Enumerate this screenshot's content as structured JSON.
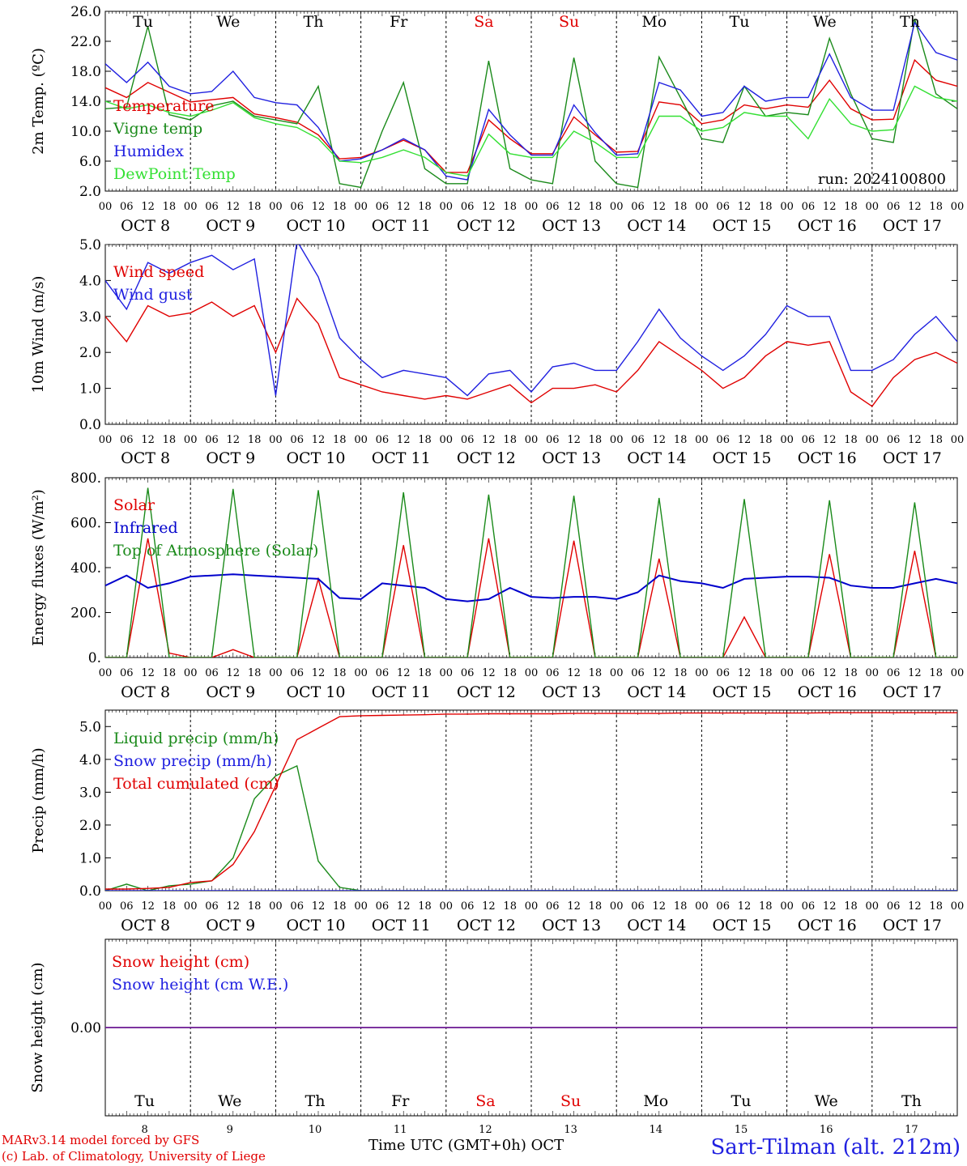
{
  "chart_data": {
    "type": "line",
    "run_label": "run: 2024100800",
    "days": [
      {
        "weekday": "Tu",
        "date_label": "OCT  8",
        "day_num": "8",
        "weekend": false
      },
      {
        "weekday": "We",
        "date_label": "OCT  9",
        "day_num": "9",
        "weekend": false
      },
      {
        "weekday": "Th",
        "date_label": "OCT 10",
        "day_num": "10",
        "weekend": false
      },
      {
        "weekday": "Fr",
        "date_label": "OCT 11",
        "day_num": "11",
        "weekend": false
      },
      {
        "weekday": "Sa",
        "date_label": "OCT 12",
        "day_num": "12",
        "weekend": true
      },
      {
        "weekday": "Su",
        "date_label": "OCT 13",
        "day_num": "13",
        "weekend": true
      },
      {
        "weekday": "Mo",
        "date_label": "OCT 14",
        "day_num": "14",
        "weekend": false
      },
      {
        "weekday": "Tu",
        "date_label": "OCT 15",
        "day_num": "15",
        "weekend": false
      },
      {
        "weekday": "We",
        "date_label": "OCT 16",
        "day_num": "16",
        "weekend": false
      },
      {
        "weekday": "Th",
        "date_label": "OCT 17",
        "day_num": "17",
        "weekend": false
      }
    ],
    "hour_ticks": [
      "00",
      "06",
      "12",
      "18"
    ],
    "x_hours": [
      0,
      6,
      12,
      18,
      24,
      30,
      36,
      42,
      48,
      54,
      60,
      66,
      72,
      78,
      84,
      90,
      96,
      102,
      108,
      114,
      120,
      126,
      132,
      138,
      144,
      150,
      156,
      162,
      168,
      174,
      180,
      186,
      192,
      198,
      204,
      210,
      216,
      222,
      228,
      234,
      240
    ],
    "panels": [
      {
        "ylabel": "2m Temp. (ºC)",
        "ylim": [
          2.0,
          26.0
        ],
        "yticks": [
          "2.0",
          "6.0",
          "10.0",
          "14.0",
          "18.0",
          "22.0",
          "26.0"
        ],
        "ytick_values": [
          2,
          6,
          10,
          14,
          18,
          22,
          26
        ],
        "series": [
          {
            "name": "Temperature",
            "color": "#e00000",
            "values": [
              15.8,
              14.5,
              16.5,
              15.2,
              13.9,
              14.2,
              14.5,
              12.3,
              11.8,
              11.2,
              9.5,
              6.3,
              6.5,
              7.5,
              8.8,
              7.5,
              4.5,
              4.5,
              11.5,
              9.0,
              7.0,
              7.0,
              11.9,
              9.5,
              7.2,
              7.3,
              13.9,
              13.5,
              11.0,
              11.5,
              13.5,
              13.0,
              13.5,
              13.2,
              16.8,
              13.0,
              11.5,
              11.6,
              19.5,
              16.8,
              16.0
            ]
          },
          {
            "name": "Vigne temp",
            "color": "#1a8a1a",
            "values": [
              13.0,
              13.2,
              24.0,
              12.2,
              11.5,
              13.4,
              14.0,
              12.0,
              11.5,
              11.0,
              16.0,
              3.0,
              2.5,
              10.0,
              16.5,
              5.0,
              3.0,
              3.0,
              19.4,
              5.0,
              3.5,
              3.0,
              19.8,
              6.0,
              3.0,
              2.5,
              19.9,
              14.5,
              9.0,
              8.5,
              16.0,
              12.0,
              12.5,
              12.2,
              22.4,
              15.0,
              9.0,
              8.5,
              25.0,
              15.0,
              13.0
            ]
          },
          {
            "name": "Humidex",
            "color": "#2020e0",
            "values": [
              19.0,
              16.5,
              19.2,
              16.0,
              15.0,
              15.3,
              18.0,
              14.5,
              13.8,
              13.5,
              10.5,
              6.0,
              6.3,
              7.5,
              9.0,
              7.5,
              4.0,
              3.5,
              12.9,
              9.5,
              6.8,
              6.8,
              13.5,
              9.8,
              6.8,
              7.0,
              16.5,
              15.5,
              12.0,
              12.5,
              16.0,
              14.0,
              14.5,
              14.5,
              20.3,
              14.5,
              12.8,
              12.8,
              24.5,
              20.5,
              19.5
            ]
          },
          {
            "name": "DewPoint Temp",
            "color": "#33e033",
            "values": [
              14.0,
              13.0,
              13.5,
              12.5,
              12.0,
              12.8,
              13.8,
              11.8,
              11.0,
              10.5,
              9.0,
              6.0,
              5.8,
              6.5,
              7.5,
              6.5,
              4.5,
              4.0,
              9.6,
              7.0,
              6.5,
              6.5,
              10.0,
              8.5,
              6.5,
              6.5,
              12.0,
              12.0,
              10.0,
              10.5,
              12.5,
              12.0,
              12.0,
              9.0,
              14.3,
              11.0,
              10.0,
              10.2,
              16.0,
              14.5,
              14.0
            ]
          }
        ]
      },
      {
        "ylabel": "10m Wind (m/s)",
        "ylim": [
          0.0,
          5.0
        ],
        "yticks": [
          "0.0",
          "1.0",
          "2.0",
          "3.0",
          "4.0",
          "5.0"
        ],
        "ytick_values": [
          0,
          1,
          2,
          3,
          4,
          5
        ],
        "series": [
          {
            "name": "Wind speed",
            "color": "#e00000",
            "values": [
              3.0,
              2.3,
              3.3,
              3.0,
              3.1,
              3.4,
              3.0,
              3.3,
              2.0,
              3.5,
              2.8,
              1.3,
              1.1,
              0.9,
              0.8,
              0.7,
              0.8,
              0.7,
              0.9,
              1.1,
              0.6,
              1.0,
              1.0,
              1.1,
              0.9,
              1.5,
              2.3,
              1.9,
              1.5,
              1.0,
              1.3,
              1.9,
              2.3,
              2.2,
              2.3,
              0.9,
              0.5,
              1.3,
              1.8,
              2.0,
              1.7
            ]
          },
          {
            "name": "Wind gust",
            "color": "#2020e0",
            "values": [
              4.0,
              3.2,
              4.5,
              4.2,
              4.5,
              4.7,
              4.3,
              4.6,
              0.8,
              5.1,
              4.1,
              2.4,
              1.8,
              1.3,
              1.5,
              1.4,
              1.3,
              0.8,
              1.4,
              1.5,
              0.9,
              1.6,
              1.7,
              1.5,
              1.5,
              2.3,
              3.2,
              2.4,
              1.9,
              1.5,
              1.9,
              2.5,
              3.3,
              3.0,
              3.0,
              1.5,
              1.5,
              1.8,
              2.5,
              3.0,
              2.3
            ]
          }
        ]
      },
      {
        "ylabel": "Energy fluxes (W/m²)",
        "ylim": [
          0,
          800
        ],
        "yticks": [
          "0.",
          "200.",
          "400.",
          "600.",
          "800."
        ],
        "ytick_values": [
          0,
          200,
          400,
          600,
          800
        ],
        "series": [
          {
            "name": "Solar",
            "color": "#e00000",
            "values": [
              0,
              0,
              530,
              20,
              0,
              0,
              35,
              0,
              0,
              0,
              350,
              0,
              0,
              0,
              500,
              0,
              0,
              0,
              530,
              0,
              0,
              0,
              520,
              0,
              0,
              0,
              440,
              0,
              0,
              0,
              180,
              0,
              0,
              0,
              460,
              0,
              0,
              0,
              475,
              0,
              0
            ]
          },
          {
            "name": "Infrared",
            "color": "#0000cc",
            "values": [
              320,
              365,
              310,
              330,
              360,
              365,
              370,
              365,
              360,
              355,
              350,
              265,
              260,
              330,
              320,
              310,
              260,
              250,
              260,
              310,
              270,
              265,
              270,
              270,
              260,
              290,
              365,
              340,
              330,
              310,
              350,
              355,
              360,
              360,
              355,
              320,
              310,
              310,
              330,
              350,
              330
            ]
          },
          {
            "name": "Top of Atmosphere (Solar)",
            "color": "#1a8a1a",
            "values": [
              0,
              0,
              755,
              0,
              0,
              0,
              750,
              0,
              0,
              0,
              745,
              0,
              0,
              0,
              735,
              0,
              0,
              0,
              725,
              0,
              0,
              0,
              720,
              0,
              0,
              0,
              710,
              0,
              0,
              0,
              705,
              0,
              0,
              0,
              700,
              0,
              0,
              0,
              690,
              0,
              0
            ]
          }
        ]
      },
      {
        "ylabel": "Precip (mm/h)",
        "ylim": [
          0.0,
          5.5
        ],
        "yticks": [
          "0.0",
          "1.0",
          "2.0",
          "3.0",
          "4.0",
          "5.0"
        ],
        "ytick_values": [
          0,
          1,
          2,
          3,
          4,
          5
        ],
        "series": [
          {
            "name": "Liquid precip (mm/h)",
            "color": "#1a8a1a",
            "values": [
              0.0,
              0.2,
              0.0,
              0.15,
              0.2,
              0.3,
              1.0,
              2.8,
              3.5,
              3.8,
              0.9,
              0.1,
              0.0,
              0.0,
              0.0,
              0.0,
              0.0,
              0.0,
              0.0,
              0.0,
              0.0,
              0.0,
              0.0,
              0.0,
              0.0,
              0.0,
              0.0,
              0.0,
              0.0,
              0.0,
              0.0,
              0.0,
              0.0,
              0.0,
              0.0,
              0.0,
              0.0,
              0.0,
              0.0,
              0.0,
              0.0
            ]
          },
          {
            "name": "Snow precip (mm/h)",
            "color": "#2020e0",
            "values": [
              0,
              0,
              0,
              0,
              0,
              0,
              0,
              0,
              0,
              0,
              0,
              0,
              0,
              0,
              0,
              0,
              0,
              0,
              0,
              0,
              0,
              0,
              0,
              0,
              0,
              0,
              0,
              0,
              0,
              0,
              0,
              0,
              0,
              0,
              0,
              0,
              0,
              0,
              0,
              0,
              0
            ]
          },
          {
            "name": "Total cumulated (cm)",
            "color": "#e00000",
            "values": [
              0.05,
              0.05,
              0.07,
              0.1,
              0.25,
              0.3,
              0.8,
              1.8,
              3.2,
              4.6,
              4.95,
              5.3,
              5.33,
              5.34,
              5.35,
              5.36,
              5.38,
              5.38,
              5.39,
              5.39,
              5.39,
              5.39,
              5.4,
              5.4,
              5.4,
              5.4,
              5.4,
              5.41,
              5.41,
              5.41,
              5.41,
              5.41,
              5.41,
              5.41,
              5.42,
              5.42,
              5.42,
              5.42,
              5.42,
              5.42,
              5.42
            ]
          }
        ]
      },
      {
        "ylabel": "Snow height (cm)",
        "ylim": [
          -1.0,
          1.0
        ],
        "yticks": [
          "0.00"
        ],
        "ytick_values": [
          0
        ],
        "series": [
          {
            "name": "Snow height (cm)",
            "color": "#e00000",
            "values": [
              0,
              0,
              0,
              0,
              0,
              0,
              0,
              0,
              0,
              0,
              0,
              0,
              0,
              0,
              0,
              0,
              0,
              0,
              0,
              0,
              0,
              0,
              0,
              0,
              0,
              0,
              0,
              0,
              0,
              0,
              0,
              0,
              0,
              0,
              0,
              0,
              0,
              0,
              0,
              0,
              0
            ]
          },
          {
            "name": "Snow height (cm W.E.)",
            "color": "#2020e0",
            "values": [
              0,
              0,
              0,
              0,
              0,
              0,
              0,
              0,
              0,
              0,
              0,
              0,
              0,
              0,
              0,
              0,
              0,
              0,
              0,
              0,
              0,
              0,
              0,
              0,
              0,
              0,
              0,
              0,
              0,
              0,
              0,
              0,
              0,
              0,
              0,
              0,
              0,
              0,
              0,
              0,
              0
            ]
          }
        ]
      }
    ]
  },
  "footer": {
    "model_line": "MARv3.14 model forced by GFS",
    "copyright_line": "(c) Lab. of Climatology, University of Liege",
    "time_axis_label": "Time UTC (GMT+0h) OCT",
    "station": "Sart-Tilman (alt. 212m)"
  }
}
